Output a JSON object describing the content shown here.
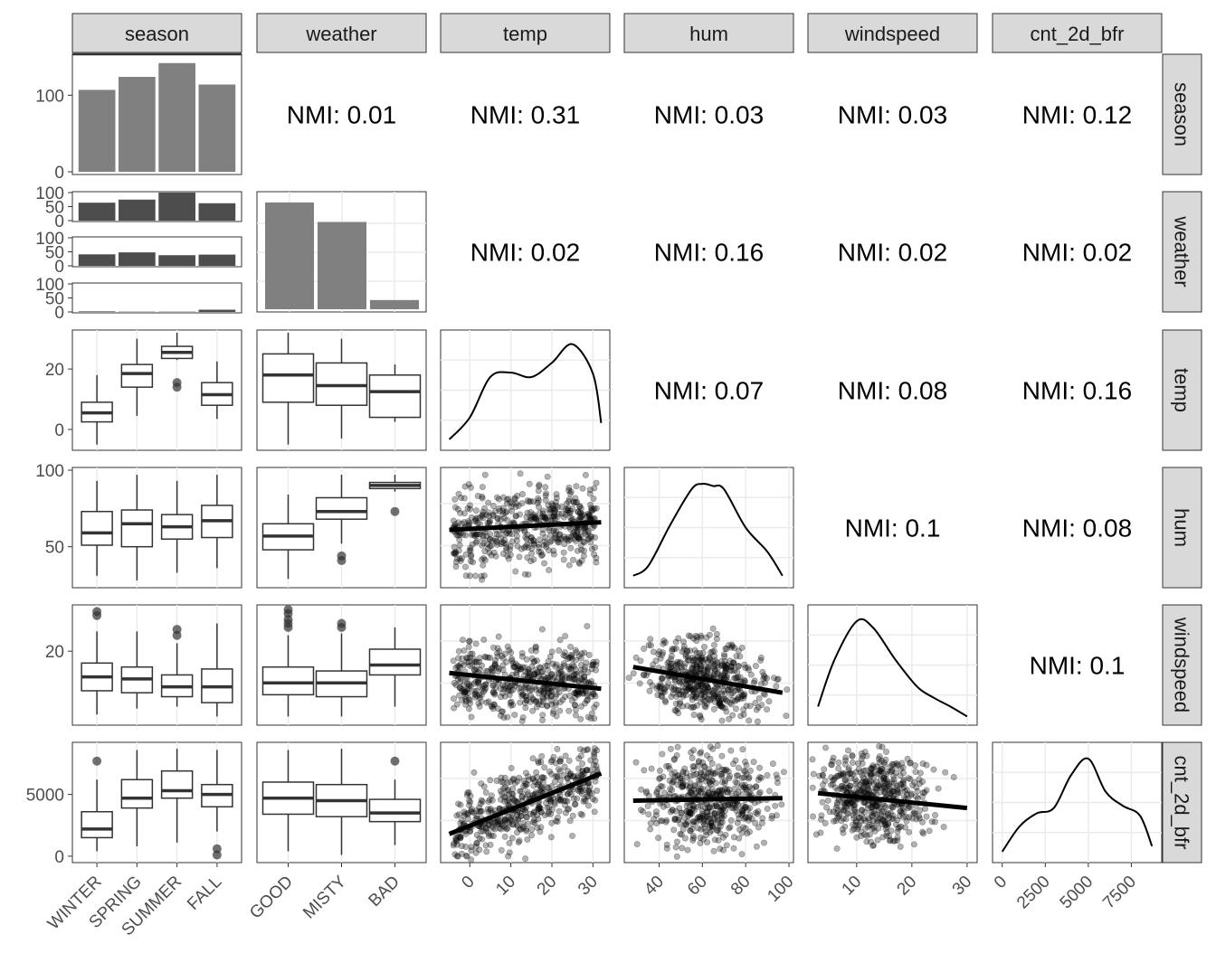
{
  "chart_data": {
    "type": "scatter",
    "variables": [
      "season",
      "weather",
      "temp",
      "hum",
      "windspeed",
      "cnt_2d_bfr"
    ],
    "seasons": [
      "WINTER",
      "SPRING",
      "SUMMER",
      "FALL"
    ],
    "weathers": [
      "GOOD",
      "MISTY",
      "BAD"
    ],
    "nmi": [
      {
        "row": 0,
        "col": 1,
        "label": "NMI: 0.01"
      },
      {
        "row": 0,
        "col": 2,
        "label": "NMI: 0.31"
      },
      {
        "row": 0,
        "col": 3,
        "label": "NMI: 0.03"
      },
      {
        "row": 0,
        "col": 4,
        "label": "NMI: 0.03"
      },
      {
        "row": 0,
        "col": 5,
        "label": "NMI: 0.12"
      },
      {
        "row": 1,
        "col": 2,
        "label": "NMI: 0.02"
      },
      {
        "row": 1,
        "col": 3,
        "label": "NMI: 0.16"
      },
      {
        "row": 1,
        "col": 4,
        "label": "NMI: 0.02"
      },
      {
        "row": 1,
        "col": 5,
        "label": "NMI: 0.02"
      },
      {
        "row": 2,
        "col": 3,
        "label": "NMI: 0.07"
      },
      {
        "row": 2,
        "col": 4,
        "label": "NMI: 0.08"
      },
      {
        "row": 2,
        "col": 5,
        "label": "NMI: 0.16"
      },
      {
        "row": 3,
        "col": 4,
        "label": "NMI: 0.1"
      },
      {
        "row": 3,
        "col": 5,
        "label": "NMI: 0.08"
      },
      {
        "row": 4,
        "col": 5,
        "label": "NMI: 0.1"
      }
    ],
    "season_counts": {
      "ylim": [
        0,
        150
      ],
      "values": [
        107,
        124,
        142,
        114
      ],
      "yticks": [
        0,
        100
      ]
    },
    "season_by_weather": {
      "ylim": [
        0,
        100
      ],
      "yticks": [
        0,
        50,
        100
      ],
      "GOOD": [
        64,
        75,
        100,
        62
      ],
      "MISTY": [
        41,
        48,
        38,
        40
      ],
      "BAD": [
        2,
        1,
        1,
        8
      ]
    },
    "weather_counts": {
      "values": [
        93,
        76,
        8
      ]
    },
    "temp_by_season": {
      "ylim": [
        -6,
        32
      ],
      "yticks": [
        0,
        20
      ],
      "boxes": [
        {
          "min": -5,
          "q1": 2.5,
          "med": 5.5,
          "q3": 9,
          "max": 18,
          "outliers": []
        },
        {
          "min": 4.5,
          "q1": 14,
          "med": 18.5,
          "q3": 21.5,
          "max": 30,
          "outliers": []
        },
        {
          "min": 23,
          "q1": 23.5,
          "med": 25.5,
          "q3": 27.5,
          "max": 32,
          "outliers": [
            14,
            15.5
          ]
        },
        {
          "min": 3.5,
          "q1": 8,
          "med": 11.5,
          "q3": 15.5,
          "max": 22.5,
          "outliers": []
        }
      ]
    },
    "temp_by_weather": {
      "boxes": [
        {
          "min": -5,
          "q1": 9,
          "med": 18,
          "q3": 25,
          "max": 32,
          "outliers": []
        },
        {
          "min": -3,
          "q1": 8,
          "med": 14.5,
          "q3": 22,
          "max": 30,
          "outliers": []
        },
        {
          "min": 2.5,
          "q1": 4,
          "med": 12.5,
          "q3": 18,
          "max": 21.5,
          "outliers": []
        }
      ]
    },
    "hum_by_season": {
      "ylim": [
        25,
        100
      ],
      "yticks": [
        50,
        100
      ],
      "boxes": [
        {
          "min": 31,
          "q1": 51,
          "med": 59,
          "q3": 73,
          "max": 93,
          "outliers": []
        },
        {
          "min": 28,
          "q1": 50,
          "med": 65,
          "q3": 74,
          "max": 97,
          "outliers": []
        },
        {
          "min": 33,
          "q1": 55,
          "med": 63,
          "q3": 71,
          "max": 93,
          "outliers": []
        },
        {
          "min": 36,
          "q1": 56,
          "med": 67,
          "q3": 77,
          "max": 97,
          "outliers": []
        }
      ]
    },
    "hum_by_weather": {
      "boxes": [
        {
          "min": 29,
          "q1": 48,
          "med": 57,
          "q3": 65,
          "max": 84,
          "outliers": []
        },
        {
          "min": 52,
          "q1": 68,
          "med": 73,
          "q3": 82,
          "max": 97,
          "outliers": [
            41,
            44
          ]
        },
        {
          "min": 86,
          "q1": 88,
          "med": 90,
          "q3": 92,
          "max": 97,
          "outliers": [
            73
          ]
        }
      ]
    },
    "wind_by_season": {
      "ylim": [
        2,
        31
      ],
      "yticks": [
        20
      ],
      "boxes": [
        {
          "min": 4,
          "q1": 10,
          "med": 13.5,
          "q3": 17,
          "max": 25,
          "outliers": [
            29,
            30
          ]
        },
        {
          "min": 5.5,
          "q1": 9.5,
          "med": 13,
          "q3": 16,
          "max": 25,
          "outliers": []
        },
        {
          "min": 6,
          "q1": 8.5,
          "med": 11,
          "q3": 14,
          "max": 22,
          "outliers": [
            24,
            25.5
          ]
        },
        {
          "min": 3.5,
          "q1": 7,
          "med": 11,
          "q3": 15.5,
          "max": 27,
          "outliers": []
        }
      ]
    },
    "wind_by_weather": {
      "boxes": [
        {
          "min": 3.5,
          "q1": 9,
          "med": 12,
          "q3": 16,
          "max": 24,
          "outliers": [
            26,
            27,
            28,
            29.5,
            30.5
          ]
        },
        {
          "min": 3.5,
          "q1": 8.5,
          "med": 12,
          "q3": 15,
          "max": 24.5,
          "outliers": [
            26,
            27
          ]
        },
        {
          "min": 6,
          "q1": 14,
          "med": 16.5,
          "q3": 20.5,
          "max": 26,
          "outliers": []
        }
      ]
    },
    "cnt_by_season": {
      "ylim": [
        -300,
        9000
      ],
      "yticks": [
        0,
        5000
      ],
      "boxes": [
        {
          "min": 400,
          "q1": 1500,
          "med": 2200,
          "q3": 3600,
          "max": 6200,
          "outliers": [
            7700
          ]
        },
        {
          "min": 800,
          "q1": 3900,
          "med": 4700,
          "q3": 6200,
          "max": 8600,
          "outliers": []
        },
        {
          "min": 1100,
          "q1": 4700,
          "med": 5300,
          "q3": 6900,
          "max": 8700,
          "outliers": []
        },
        {
          "min": 2000,
          "q1": 4000,
          "med": 5000,
          "q3": 5800,
          "max": 8600,
          "outliers": [
            600,
            100
          ]
        }
      ]
    },
    "cnt_by_weather": {
      "boxes": [
        {
          "min": 400,
          "q1": 3400,
          "med": 4700,
          "q3": 6000,
          "max": 8600,
          "outliers": []
        },
        {
          "min": 100,
          "q1": 3200,
          "med": 4500,
          "q3": 5800,
          "max": 8700,
          "outliers": []
        },
        {
          "min": 900,
          "q1": 2800,
          "med": 3500,
          "q3": 4600,
          "max": 6200,
          "outliers": [
            7700
          ]
        }
      ]
    },
    "density_temp": {
      "x": [
        -5,
        0,
        5,
        10,
        15,
        20,
        25,
        30,
        32
      ],
      "y": [
        0.05,
        0.25,
        0.62,
        0.66,
        0.62,
        0.75,
        0.92,
        0.65,
        0.2
      ],
      "xlim": [
        -6,
        33
      ]
    },
    "density_hum": {
      "x": [
        28,
        35,
        45,
        55,
        60,
        65,
        70,
        80,
        90,
        97
      ],
      "y": [
        0.06,
        0.15,
        0.52,
        0.85,
        0.9,
        0.88,
        0.85,
        0.5,
        0.28,
        0.06
      ],
      "xlim": [
        26,
        100
      ]
    },
    "density_wind": {
      "x": [
        3,
        6,
        10,
        13,
        17,
        21,
        24,
        27,
        30
      ],
      "y": [
        0.12,
        0.55,
        0.9,
        0.84,
        0.55,
        0.3,
        0.2,
        0.12,
        0.03
      ],
      "xlim": [
        2,
        31
      ]
    },
    "density_cnt": {
      "x": [
        0,
        1000,
        2000,
        3000,
        4000,
        5000,
        6000,
        7000,
        8000,
        8700
      ],
      "y": [
        0.05,
        0.28,
        0.4,
        0.45,
        0.75,
        0.9,
        0.6,
        0.47,
        0.38,
        0.1
      ],
      "xlim": [
        -300,
        9000
      ]
    },
    "regressions": {
      "hum_vs_temp": {
        "x": [
          -5,
          32
        ],
        "y": [
          61,
          66
        ]
      },
      "wind_vs_temp": {
        "x": [
          -5,
          32
        ],
        "y": [
          14.5,
          10.5
        ]
      },
      "wind_vs_hum": {
        "x": [
          28,
          97
        ],
        "y": [
          16,
          9.5
        ]
      },
      "cnt_vs_temp": {
        "x": [
          -5,
          32
        ],
        "y": [
          1800,
          6700
        ]
      },
      "cnt_vs_hum": {
        "x": [
          28,
          97
        ],
        "y": [
          4500,
          4700
        ]
      },
      "cnt_vs_wind": {
        "x": [
          3,
          30
        ],
        "y": [
          5100,
          3900
        ]
      }
    },
    "x_axes": {
      "season": [
        "WINTER",
        "SPRING",
        "SUMMER",
        "FALL"
      ],
      "weather": [
        "GOOD",
        "MISTY",
        "BAD"
      ],
      "temp": [
        0,
        10,
        20,
        30
      ],
      "hum": [
        40,
        60,
        80,
        100
      ],
      "windspeed": [
        10,
        20,
        30
      ],
      "cnt_2d_bfr": [
        0,
        2500,
        5000,
        7500
      ]
    }
  }
}
